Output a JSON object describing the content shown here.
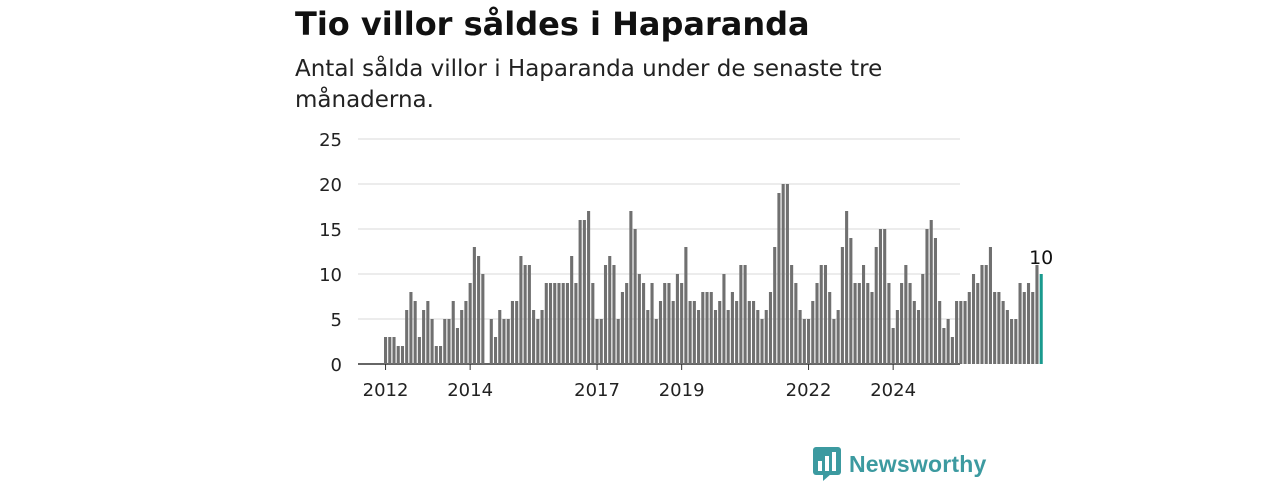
{
  "title": "Tio villor såldes i Haparanda",
  "subtitle": "Antal sålda villor i Haparanda under de senaste tre månaderna.",
  "logo": {
    "text": "Newsworthy",
    "icon": "newsworthy-chart-icon",
    "color": "#3c9aa0"
  },
  "chart_data": {
    "type": "bar",
    "title": "Tio villor såldes i Haparanda",
    "subtitle": "Antal sålda villor i Haparanda under de senaste tre månaderna.",
    "xlabel": "",
    "ylabel": "",
    "ylim": [
      0,
      25
    ],
    "yticks": [
      0,
      5,
      10,
      15,
      20,
      25
    ],
    "grid": true,
    "bar_color": "#707070",
    "highlight_color": "#1a9a8e",
    "x_start": "2012-01",
    "xtick_labels": [
      {
        "label": "2012",
        "index": 0
      },
      {
        "label": "2014",
        "index": 20
      },
      {
        "label": "2017",
        "index": 50
      },
      {
        "label": "2019",
        "index": 70
      },
      {
        "label": "2022",
        "index": 100
      },
      {
        "label": "2024",
        "index": 120
      }
    ],
    "values": [
      3,
      3,
      3,
      2,
      2,
      6,
      8,
      7,
      3,
      6,
      7,
      5,
      2,
      2,
      5,
      5,
      7,
      4,
      6,
      7,
      9,
      13,
      12,
      10,
      0,
      5,
      3,
      6,
      5,
      5,
      7,
      7,
      12,
      11,
      11,
      6,
      5,
      6,
      9,
      9,
      9,
      9,
      9,
      9,
      12,
      9,
      16,
      16,
      17,
      9,
      5,
      5,
      11,
      12,
      11,
      5,
      8,
      9,
      17,
      15,
      10,
      9,
      6,
      9,
      5,
      7,
      9,
      9,
      7,
      10,
      9,
      13,
      7,
      7,
      6,
      8,
      8,
      8,
      6,
      7,
      10,
      6,
      8,
      7,
      11,
      11,
      7,
      7,
      6,
      5,
      6,
      8,
      13,
      19,
      20,
      20,
      11,
      9,
      6,
      5,
      5,
      7,
      9,
      11,
      11,
      8,
      5,
      6,
      13,
      17,
      14,
      9,
      9,
      11,
      9,
      8,
      13,
      15,
      15,
      9,
      4,
      6,
      9,
      11,
      9,
      7,
      6,
      10,
      15,
      16,
      14,
      7,
      4,
      5,
      3,
      7,
      7,
      7,
      8,
      10,
      9,
      11,
      11,
      13,
      8,
      8,
      7,
      6,
      5,
      5,
      9,
      8,
      9,
      8,
      11,
      10
    ],
    "last_value_label": "10"
  }
}
